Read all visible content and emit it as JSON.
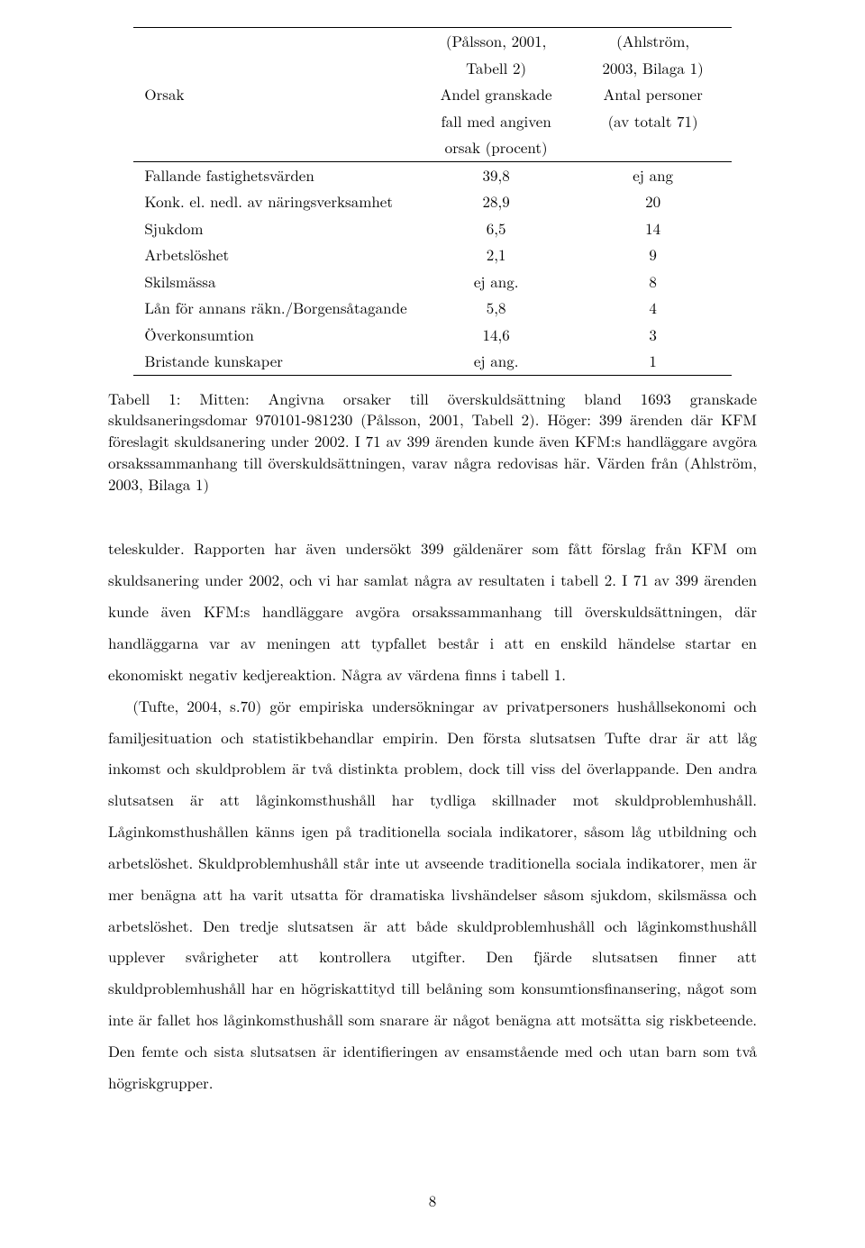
{
  "table": {
    "header": {
      "col0_row2": "Orsak",
      "col1_row1": "(Pålsson, 2001,",
      "col1_row2": "Tabell 2)",
      "col1_row3": "Andel granskade",
      "col1_row4": "fall med angiven",
      "col1_row5": "orsak (procent)",
      "col2_row1": "(Ahlström,",
      "col2_row2": "2003, Bilaga 1)",
      "col2_row3": "Antal personer",
      "col2_row4": "(av totalt 71)"
    },
    "rows": [
      {
        "orsak": "Fallande fastighetsvärden",
        "c1": "39,8",
        "c2": "ej ang"
      },
      {
        "orsak": "Konk. el. nedl. av näringsverksamhet",
        "c1": "28,9",
        "c2": "20"
      },
      {
        "orsak": "Sjukdom",
        "c1": "6,5",
        "c2": "14"
      },
      {
        "orsak": "Arbetslöshet",
        "c1": "2,1",
        "c2": "9"
      },
      {
        "orsak": "Skilsmässa",
        "c1": "ej ang.",
        "c2": "8"
      },
      {
        "orsak": "Lån för annans räkn./Borgensåtagande",
        "c1": "5,8",
        "c2": "4"
      },
      {
        "orsak": "Överkonsumtion",
        "c1": "14,6",
        "c2": "3"
      },
      {
        "orsak": "Bristande kunskaper",
        "c1": "ej ang.",
        "c2": "1"
      }
    ]
  },
  "caption": "Tabell 1: Mitten: Angivna orsaker till överskuldsättning bland 1693 granskade skuldsaneringsdomar 970101-981230 (Pålsson, 2001, Tabell 2). Höger: 399 ärenden där KFM föreslagit skuldsanering under 2002. I 71 av 399 ärenden kunde även KFM:s handläggare avgöra orsakssammanhang till överskuldsättningen, varav några redovisas här. Värden från (Ahlström, 2003, Bilaga 1)",
  "para1": "teleskulder. Rapporten har även undersökt 399 gäldenärer som fått förslag från KFM om skuldsanering under 2002, och vi har samlat några av resultaten i tabell 2. I 71 av 399 ärenden kunde även KFM:s handläggare avgöra orsakssammanhang till överskuldsättningen, där handläggarna var av meningen att typfallet består i att en enskild händelse startar en ekonomiskt negativ kedjereaktion. Några av värdena finns i tabell 1.",
  "para2": "(Tufte, 2004, s.70) gör empiriska undersökningar av privatpersoners hushållsekonomi och familjesituation och statistikbehandlar empirin. Den första slutsatsen Tufte drar är att låg inkomst och skuldproblem är två distinkta problem, dock till viss del överlappande. Den andra slutsatsen är att låginkomsthushåll har tydliga skillnader mot skuldproblemhushåll. Låginkomsthushållen känns igen på traditionella sociala indikatorer, såsom låg utbildning och arbetslöshet. Skuldproblemhushåll står inte ut avseende traditionella sociala indikatorer, men är mer benägna att ha varit utsatta för dramatiska livshändelser såsom sjukdom, skilsmässa och arbetslöshet. Den tredje slutsatsen är att både skuldproblemhushåll och låginkomsthushåll upplever svårigheter att kontrollera utgifter. Den fjärde slutsatsen finner att skuldproblemhushåll har en högriskattityd till belåning som konsumtionsfinansering, något som inte är fallet hos låginkomsthushåll som snarare är något benägna att motsätta sig riskbeteende. Den femte och sista slutsatsen är identifieringen av ensamstående med och utan barn som två högriskgrupper.",
  "page_number": "8"
}
